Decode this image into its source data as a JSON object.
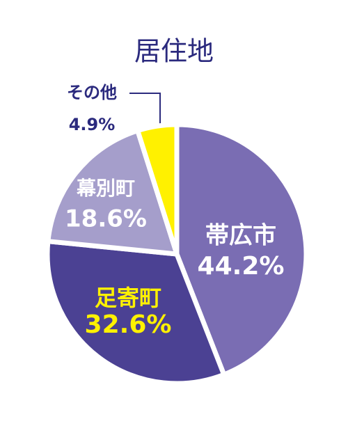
{
  "chart_data": {
    "type": "pie",
    "title": "居住地",
    "categories": [
      "帯広市",
      "足寄町",
      "幕別町",
      "その他"
    ],
    "values": [
      44.2,
      32.6,
      18.6,
      4.9
    ],
    "value_labels": [
      "44.2%",
      "32.6%",
      "18.6%",
      "4.9%"
    ],
    "colors": [
      "#7a6db3",
      "#4b4193",
      "#a59ecb",
      "#fff100"
    ]
  }
}
